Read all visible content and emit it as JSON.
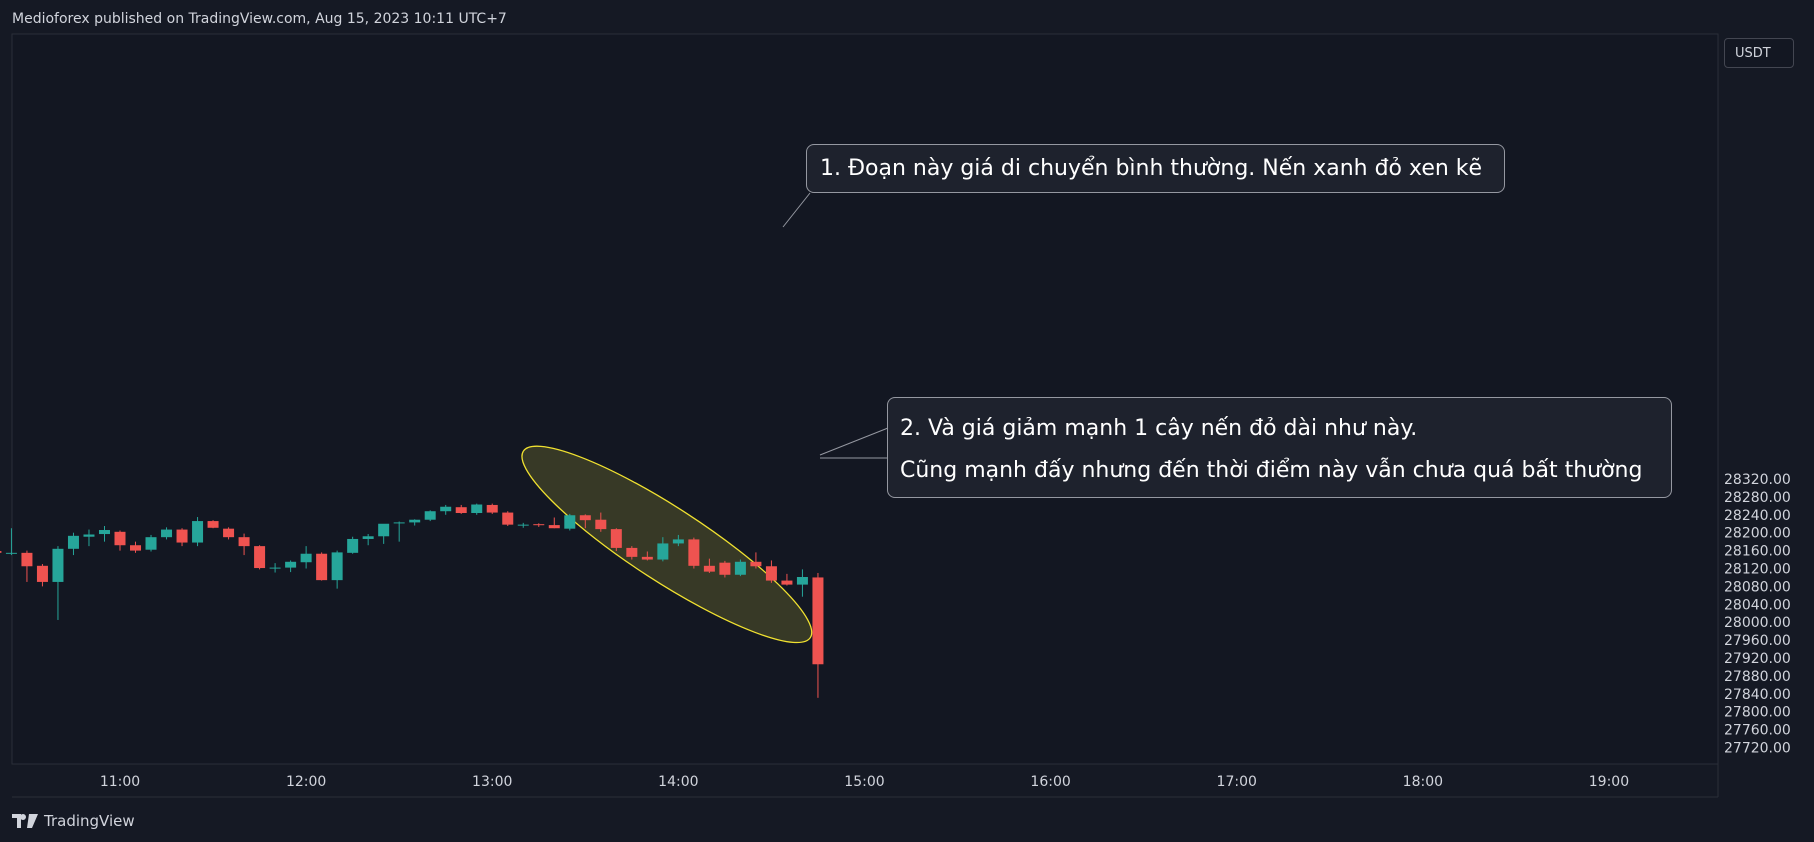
{
  "header": {
    "publisher": "Medioforex published on TradingView.com, Aug 15, 2023 10:11 UTC+7"
  },
  "currency_label": "USDT",
  "footer": {
    "brand": "TradingView",
    "logo_icon": "tradingview-logo-icon"
  },
  "annotations": {
    "note1": "1. Đoạn này giá di chuyển bình thường. Nến xanh đỏ xen kẽ",
    "note2_line1": "2. Và giá giảm mạnh 1 cây nến đỏ dài như này.",
    "note2_line2": "Cũng mạnh đấy nhưng đến thời điểm này vẫn chưa quá bất thường"
  },
  "chart_data": {
    "type": "candlestick",
    "interval_minutes": 5,
    "x_tick_labels": [
      "11:00",
      "12:00",
      "13:00",
      "14:00",
      "15:00",
      "16:00",
      "17:00",
      "18:00",
      "19:00"
    ],
    "y_tick_labels": [
      "28320.00",
      "28280.00",
      "28240.00",
      "28200.00",
      "28160.00",
      "28120.00",
      "28080.00",
      "28040.00",
      "28000.00",
      "27960.00",
      "27920.00",
      "27880.00",
      "27840.00",
      "27800.00",
      "27760.00",
      "27720.00"
    ],
    "ylim": [
      27700,
      28330
    ],
    "colors": {
      "up": "#26a69a",
      "down": "#ef5350",
      "highlight": "#f0e130",
      "background": "#151924"
    },
    "candles": [
      {
        "time": "10:20",
        "o": 28159,
        "h": 28180,
        "l": 28155,
        "c": 28155
      },
      {
        "time": "10:25",
        "o": 28154,
        "h": 28210,
        "l": 28150,
        "c": 28155
      },
      {
        "time": "10:30",
        "o": 28155,
        "h": 28160,
        "l": 28090,
        "c": 28125
      },
      {
        "time": "10:35",
        "o": 28126,
        "h": 28130,
        "l": 28080,
        "c": 28090
      },
      {
        "time": "10:40",
        "o": 28090,
        "h": 28170,
        "l": 28005,
        "c": 28164
      },
      {
        "time": "10:45",
        "o": 28164,
        "h": 28200,
        "l": 28150,
        "c": 28193
      },
      {
        "time": "10:50",
        "o": 28191,
        "h": 28207,
        "l": 28170,
        "c": 28196
      },
      {
        "time": "10:55",
        "o": 28197,
        "h": 28215,
        "l": 28180,
        "c": 28206
      },
      {
        "time": "11:00",
        "o": 28202,
        "h": 28205,
        "l": 28160,
        "c": 28172
      },
      {
        "time": "11:05",
        "o": 28172,
        "h": 28180,
        "l": 28155,
        "c": 28160
      },
      {
        "time": "11:10",
        "o": 28162,
        "h": 28195,
        "l": 28158,
        "c": 28190
      },
      {
        "time": "11:15",
        "o": 28190,
        "h": 28212,
        "l": 28185,
        "c": 28207
      },
      {
        "time": "11:20",
        "o": 28207,
        "h": 28210,
        "l": 28170,
        "c": 28178
      },
      {
        "time": "11:25",
        "o": 28178,
        "h": 28235,
        "l": 28170,
        "c": 28226
      },
      {
        "time": "11:30",
        "o": 28226,
        "h": 28228,
        "l": 28210,
        "c": 28211
      },
      {
        "time": "11:35",
        "o": 28209,
        "h": 28212,
        "l": 28185,
        "c": 28190
      },
      {
        "time": "11:40",
        "o": 28190,
        "h": 28198,
        "l": 28150,
        "c": 28170
      },
      {
        "time": "11:45",
        "o": 28170,
        "h": 28172,
        "l": 28118,
        "c": 28121
      },
      {
        "time": "11:50",
        "o": 28120,
        "h": 28132,
        "l": 28111,
        "c": 28122
      },
      {
        "time": "11:55",
        "o": 28122,
        "h": 28138,
        "l": 28112,
        "c": 28135
      },
      {
        "time": "12:00",
        "o": 28134,
        "h": 28170,
        "l": 28120,
        "c": 28153
      },
      {
        "time": "12:05",
        "o": 28153,
        "h": 28156,
        "l": 28093,
        "c": 28094
      },
      {
        "time": "12:10",
        "o": 28094,
        "h": 28160,
        "l": 28075,
        "c": 28156
      },
      {
        "time": "12:15",
        "o": 28155,
        "h": 28191,
        "l": 28153,
        "c": 28186
      },
      {
        "time": "12:20",
        "o": 28186,
        "h": 28197,
        "l": 28172,
        "c": 28192
      },
      {
        "time": "12:25",
        "o": 28192,
        "h": 28215,
        "l": 28175,
        "c": 28220
      },
      {
        "time": "12:30",
        "o": 28221,
        "h": 28225,
        "l": 28180,
        "c": 28223
      },
      {
        "time": "12:35",
        "o": 28223,
        "h": 28230,
        "l": 28216,
        "c": 28229
      },
      {
        "time": "12:40",
        "o": 28229,
        "h": 28250,
        "l": 28226,
        "c": 28248
      },
      {
        "time": "12:45",
        "o": 28248,
        "h": 28262,
        "l": 28240,
        "c": 28258
      },
      {
        "time": "12:50",
        "o": 28257,
        "h": 28262,
        "l": 28242,
        "c": 28244
      },
      {
        "time": "12:55",
        "o": 28244,
        "h": 28265,
        "l": 28240,
        "c": 28263
      },
      {
        "time": "13:00",
        "o": 28262,
        "h": 28265,
        "l": 28242,
        "c": 28245
      },
      {
        "time": "13:05",
        "o": 28245,
        "h": 28248,
        "l": 28215,
        "c": 28218
      },
      {
        "time": "13:10",
        "o": 28218,
        "h": 28222,
        "l": 28211,
        "c": 28218
      },
      {
        "time": "13:15",
        "o": 28219,
        "h": 28221,
        "l": 28213,
        "c": 28217
      },
      {
        "time": "13:20",
        "o": 28217,
        "h": 28234,
        "l": 28210,
        "c": 28210
      },
      {
        "time": "13:25",
        "o": 28209,
        "h": 28242,
        "l": 28205,
        "c": 28239
      },
      {
        "time": "13:30",
        "o": 28239,
        "h": 28241,
        "l": 28210,
        "c": 28228
      },
      {
        "time": "13:35",
        "o": 28229,
        "h": 28245,
        "l": 28202,
        "c": 28208
      },
      {
        "time": "13:40",
        "o": 28208,
        "h": 28210,
        "l": 28159,
        "c": 28166
      },
      {
        "time": "13:45",
        "o": 28166,
        "h": 28170,
        "l": 28140,
        "c": 28146
      },
      {
        "time": "13:50",
        "o": 28146,
        "h": 28158,
        "l": 28138,
        "c": 28140
      },
      {
        "time": "13:55",
        "o": 28140,
        "h": 28190,
        "l": 28136,
        "c": 28176
      },
      {
        "time": "14:00",
        "o": 28176,
        "h": 28195,
        "l": 28170,
        "c": 28185
      },
      {
        "time": "14:05",
        "o": 28185,
        "h": 28189,
        "l": 28120,
        "c": 28126
      },
      {
        "time": "14:10",
        "o": 28126,
        "h": 28142,
        "l": 28110,
        "c": 28113
      },
      {
        "time": "14:15",
        "o": 28133,
        "h": 28137,
        "l": 28100,
        "c": 28106
      },
      {
        "time": "14:20",
        "o": 28106,
        "h": 28140,
        "l": 28103,
        "c": 28135
      },
      {
        "time": "14:25",
        "o": 28135,
        "h": 28156,
        "l": 28120,
        "c": 28125
      },
      {
        "time": "14:30",
        "o": 28125,
        "h": 28138,
        "l": 28088,
        "c": 28093
      },
      {
        "time": "14:35",
        "o": 28093,
        "h": 28108,
        "l": 28082,
        "c": 28084
      },
      {
        "time": "14:40",
        "o": 28084,
        "h": 28118,
        "l": 28057,
        "c": 28101
      },
      {
        "time": "14:45",
        "o": 28100,
        "h": 28110,
        "l": 27831,
        "c": 27906
      }
    ],
    "highlight_ellipse": {
      "time_from": "13:05",
      "time_to": "14:45",
      "price_from": 28065,
      "price_to": 28265
    }
  }
}
